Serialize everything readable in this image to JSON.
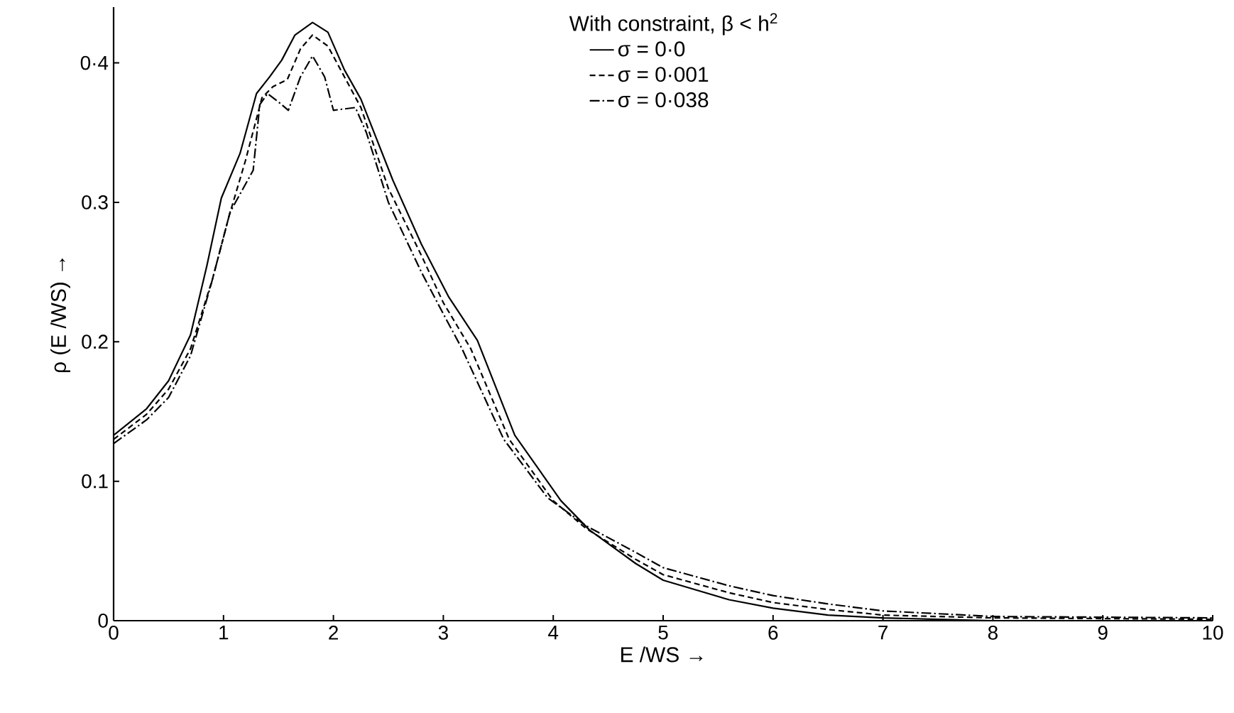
{
  "chart_data": {
    "type": "line",
    "xlabel": "E /WS →",
    "ylabel": "ρ (E /WS) →",
    "legend_title": "With constraint, β < h$^{2}$",
    "xlim": [
      0,
      10
    ],
    "ylim": [
      0,
      0.44
    ],
    "xticks": [
      0,
      1,
      2,
      3,
      4,
      5,
      6,
      7,
      8,
      9,
      10
    ],
    "yticks": [
      0,
      {
        "value": 0.1,
        "label": "0.1"
      },
      {
        "value": 0.2,
        "label": "0.2"
      },
      {
        "value": 0.3,
        "label": "0.3"
      },
      {
        "value": 0.4,
        "label": "0·4"
      }
    ],
    "grid": false,
    "legend": "top",
    "marker": "none",
    "series": [
      {
        "name": "σ = 0·0",
        "color": "#000000",
        "line_style": "solid",
        "x": [
          0,
          0.3,
          0.5,
          0.7,
          0.85,
          0.98,
          1.15,
          1.3,
          1.42,
          1.53,
          1.65,
          1.81,
          1.95,
          2.1,
          2.25,
          2.54,
          2.8,
          3.05,
          3.31,
          3.65,
          4.07,
          4.33,
          4.75,
          5,
          5.6,
          6,
          6.5,
          7,
          7.5,
          8,
          10
        ],
        "values": [
          0.133,
          0.152,
          0.172,
          0.205,
          0.255,
          0.303,
          0.335,
          0.378,
          0.39,
          0.402,
          0.42,
          0.429,
          0.422,
          0.395,
          0.374,
          0.316,
          0.27,
          0.232,
          0.201,
          0.133,
          0.086,
          0.065,
          0.041,
          0.029,
          0.015,
          0.009,
          0.004,
          0.002,
          0.001,
          0.0,
          0.0
        ]
      },
      {
        "name": "σ = 0·001",
        "color": "#000000",
        "line_style": "dashed",
        "x": [
          0,
          0.3,
          0.5,
          0.7,
          0.9,
          1.05,
          1.2,
          1.35,
          1.45,
          1.58,
          1.7,
          1.81,
          1.95,
          2.1,
          2.25,
          2.5,
          2.8,
          3.0,
          3.25,
          3.6,
          4.0,
          4.3,
          4.75,
          5,
          5.6,
          6,
          6.5,
          7,
          7.5,
          8,
          10
        ],
        "values": [
          0.13,
          0.148,
          0.166,
          0.195,
          0.245,
          0.29,
          0.33,
          0.375,
          0.383,
          0.388,
          0.41,
          0.42,
          0.412,
          0.39,
          0.368,
          0.31,
          0.262,
          0.228,
          0.195,
          0.13,
          0.086,
          0.066,
          0.044,
          0.033,
          0.02,
          0.013,
          0.008,
          0.004,
          0.003,
          0.002,
          0.001
        ]
      },
      {
        "name": "σ = 0·038",
        "color": "#000000",
        "line_style": "dashdot",
        "x": [
          0,
          0.3,
          0.5,
          0.7,
          0.89,
          1.06,
          1.27,
          1.33,
          1.4,
          1.5,
          1.59,
          1.7,
          1.81,
          1.92,
          2.0,
          2.2,
          2.3,
          2.5,
          2.8,
          3.0,
          3.17,
          3.55,
          3.95,
          4.3,
          4.75,
          5,
          5.6,
          6,
          6.5,
          7,
          7.5,
          8,
          10
        ],
        "values": [
          0.127,
          0.144,
          0.16,
          0.19,
          0.242,
          0.293,
          0.323,
          0.37,
          0.378,
          0.372,
          0.366,
          0.39,
          0.405,
          0.39,
          0.366,
          0.368,
          0.35,
          0.3,
          0.25,
          0.22,
          0.195,
          0.13,
          0.088,
          0.068,
          0.049,
          0.038,
          0.025,
          0.018,
          0.012,
          0.007,
          0.005,
          0.003,
          0.002
        ]
      }
    ]
  }
}
